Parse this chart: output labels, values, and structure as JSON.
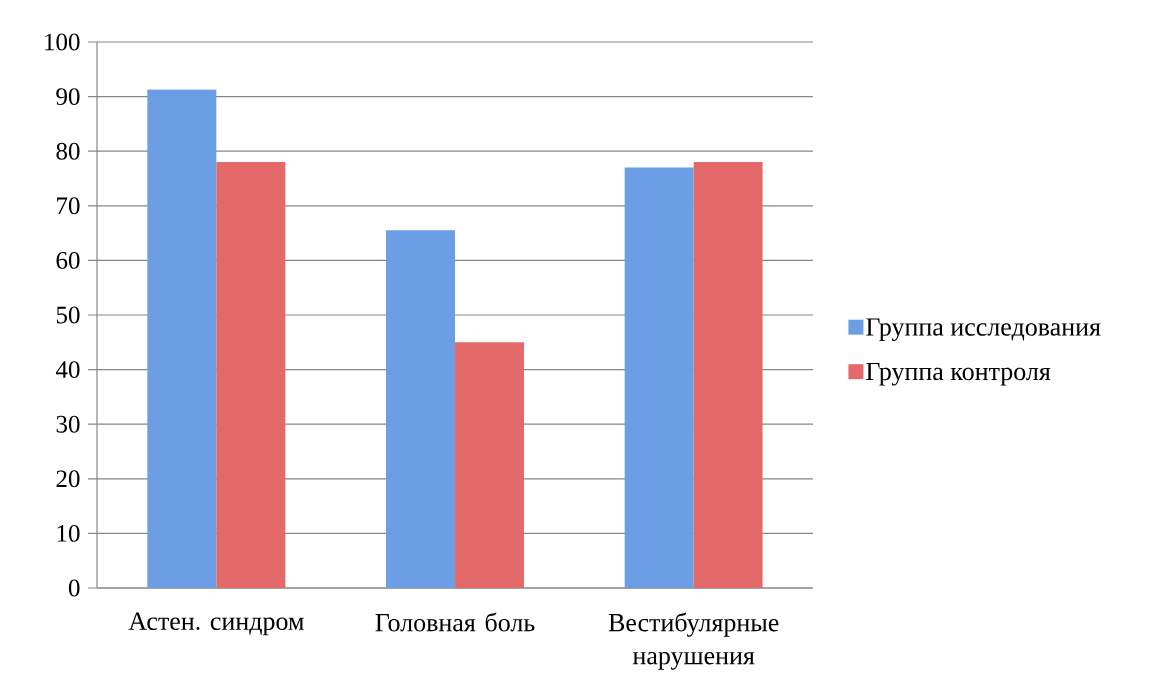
{
  "chart_data": {
    "type": "bar",
    "categories": [
      "Астен. синдром",
      "Головная боль",
      "Вестибулярные нарушения"
    ],
    "series": [
      {
        "name": "Группа исследования",
        "color": "#6c9ee6",
        "values": [
          91.3,
          65.5,
          77
        ]
      },
      {
        "name": "Группа контроля",
        "color": "#e46a69",
        "values": [
          78,
          45,
          78
        ]
      }
    ],
    "ylim": [
      0,
      100
    ],
    "yticks": [
      0,
      10,
      20,
      30,
      40,
      50,
      60,
      70,
      80,
      90,
      100
    ],
    "grid": "y",
    "legend": "right"
  }
}
